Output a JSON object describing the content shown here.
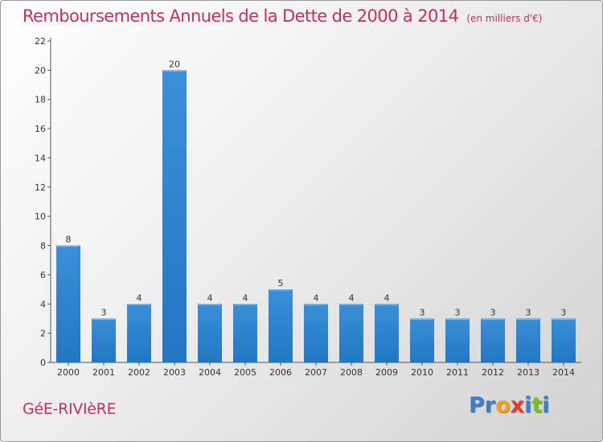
{
  "chart_data": {
    "type": "bar",
    "title": "Remboursements Annuels de la Dette de 2000 à 2014",
    "unit_label": "(en milliers d'€)",
    "categories": [
      "2000",
      "2001",
      "2002",
      "2003",
      "2004",
      "2005",
      "2006",
      "2007",
      "2008",
      "2009",
      "2010",
      "2011",
      "2012",
      "2013",
      "2014"
    ],
    "values": [
      8,
      3,
      4,
      20,
      4,
      4,
      5,
      4,
      4,
      4,
      3,
      3,
      3,
      3,
      3
    ],
    "ylim": [
      0,
      22
    ],
    "yticks": [
      0,
      2,
      4,
      6,
      8,
      10,
      12,
      14,
      16,
      18,
      20,
      22
    ],
    "bar_color": "#3b8fd8",
    "bar_color_dark": "#2376c2",
    "title_color": "#c0315e",
    "grid": false
  },
  "footer": {
    "commune": "GéE-RIVIèRE",
    "logo_letters": [
      {
        "char": "P",
        "color": "#3b7fd0"
      },
      {
        "char": "r",
        "color": "#3b7fd0"
      },
      {
        "char": "o",
        "color": "#f2a21b"
      },
      {
        "char": "x",
        "color": "#e53b2a"
      },
      {
        "char": "i",
        "color": "#3b7fd0"
      },
      {
        "char": "t",
        "color": "#7cbf2a"
      },
      {
        "char": "i",
        "color": "#3b7fd0"
      }
    ]
  }
}
